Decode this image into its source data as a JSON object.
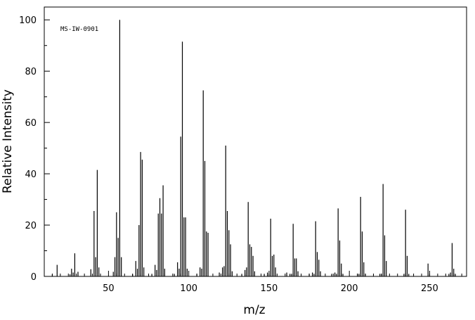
{
  "chart_data": {
    "type": "bar",
    "style": "mass-spectrum stick plot",
    "annotation": "MS-IW-0901",
    "xlabel": "m/z",
    "ylabel": "Relative Intensity",
    "xlim": [
      10,
      273
    ],
    "ylim": [
      0,
      105
    ],
    "x_ticks": [
      50,
      100,
      150,
      200,
      250
    ],
    "y_ticks": [
      0,
      20,
      40,
      60,
      80,
      100
    ],
    "grid": false,
    "peaks": [
      [
        15,
        0.8
      ],
      [
        18,
        4.5
      ],
      [
        26,
        0.8
      ],
      [
        27,
        3
      ],
      [
        28,
        1.5
      ],
      [
        29,
        9
      ],
      [
        31,
        1.8
      ],
      [
        39,
        2.8
      ],
      [
        41,
        25.5
      ],
      [
        42,
        7.5
      ],
      [
        43,
        41.5
      ],
      [
        44,
        3.5
      ],
      [
        53,
        1.8
      ],
      [
        54,
        7.5
      ],
      [
        55,
        25
      ],
      [
        56,
        15
      ],
      [
        57,
        100
      ],
      [
        58,
        7.5
      ],
      [
        65,
        0.8
      ],
      [
        67,
        6
      ],
      [
        68,
        3
      ],
      [
        69,
        20
      ],
      [
        70,
        48.5
      ],
      [
        71,
        45.5
      ],
      [
        72,
        3.5
      ],
      [
        77,
        1
      ],
      [
        79,
        4.5
      ],
      [
        80,
        2.5
      ],
      [
        81,
        24.5
      ],
      [
        82,
        30.5
      ],
      [
        83,
        24.5
      ],
      [
        84,
        35.5
      ],
      [
        85,
        3
      ],
      [
        91,
        1
      ],
      [
        93,
        5.5
      ],
      [
        94,
        3
      ],
      [
        95,
        54.5
      ],
      [
        96,
        91.5
      ],
      [
        97,
        23
      ],
      [
        98,
        23
      ],
      [
        99,
        3
      ],
      [
        105,
        1
      ],
      [
        107,
        3.5
      ],
      [
        108,
        3
      ],
      [
        109,
        72.5
      ],
      [
        110,
        45
      ],
      [
        111,
        17.5
      ],
      [
        112,
        17
      ],
      [
        119,
        1.5
      ],
      [
        121,
        3.5
      ],
      [
        122,
        4
      ],
      [
        123,
        51
      ],
      [
        124,
        25.5
      ],
      [
        125,
        18
      ],
      [
        126,
        12.5
      ],
      [
        127,
        2
      ],
      [
        133,
        1
      ],
      [
        135,
        2.5
      ],
      [
        136,
        3.5
      ],
      [
        137,
        29
      ],
      [
        138,
        12.5
      ],
      [
        139,
        11.5
      ],
      [
        140,
        8
      ],
      [
        141,
        2
      ],
      [
        147,
        1
      ],
      [
        149,
        1.5
      ],
      [
        150,
        1
      ],
      [
        151,
        22.5
      ],
      [
        152,
        8
      ],
      [
        153,
        8.5
      ],
      [
        154,
        3.5
      ],
      [
        161,
        1.5
      ],
      [
        163,
        1
      ],
      [
        164,
        1
      ],
      [
        165,
        20.5
      ],
      [
        166,
        7
      ],
      [
        167,
        7
      ],
      [
        168,
        2
      ],
      [
        175,
        1
      ],
      [
        177,
        1.5
      ],
      [
        178,
        1
      ],
      [
        179,
        21.5
      ],
      [
        180,
        9.5
      ],
      [
        181,
        6.5
      ],
      [
        182,
        2
      ],
      [
        189,
        1
      ],
      [
        191,
        1.5
      ],
      [
        192,
        1
      ],
      [
        193,
        26.5
      ],
      [
        194,
        14
      ],
      [
        195,
        5
      ],
      [
        196,
        1
      ],
      [
        205,
        1
      ],
      [
        206,
        1
      ],
      [
        207,
        31
      ],
      [
        208,
        17.5
      ],
      [
        209,
        5.5
      ],
      [
        210,
        1
      ],
      [
        219,
        1
      ],
      [
        220,
        1
      ],
      [
        221,
        36
      ],
      [
        222,
        16
      ],
      [
        223,
        6
      ],
      [
        234,
        1
      ],
      [
        235,
        26
      ],
      [
        236,
        8
      ],
      [
        237,
        1
      ],
      [
        249,
        5
      ],
      [
        250,
        1
      ],
      [
        262,
        1
      ],
      [
        263,
        1.5
      ],
      [
        264,
        13
      ],
      [
        265,
        3
      ],
      [
        266,
        1
      ]
    ]
  }
}
